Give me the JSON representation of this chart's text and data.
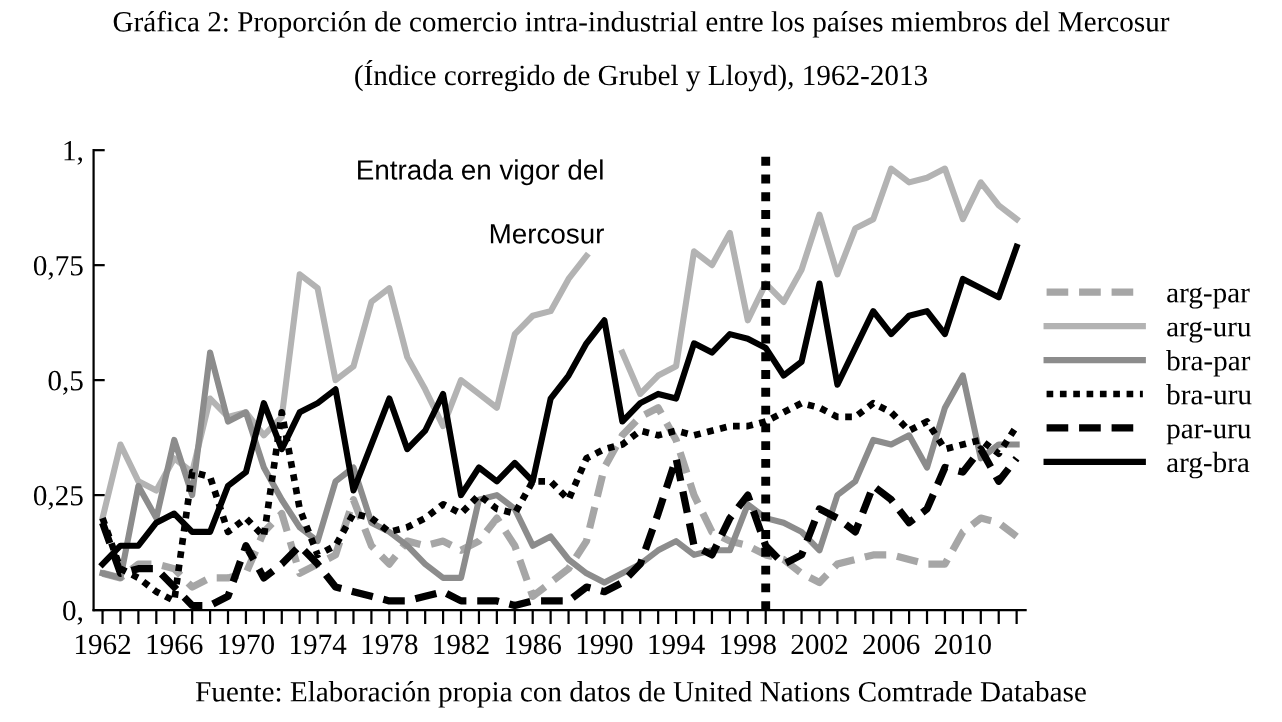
{
  "chart_data": {
    "type": "line",
    "title": "Gráfica 2: Proporción de comercio intra-industrial entre los países miembros del Mercosur\n(Índice corregido de Grubel y Lloyd), 1962-2013",
    "x": [
      1962,
      1963,
      1964,
      1965,
      1966,
      1967,
      1968,
      1969,
      1970,
      1971,
      1972,
      1973,
      1974,
      1975,
      1976,
      1977,
      1978,
      1979,
      1980,
      1981,
      1982,
      1983,
      1984,
      1985,
      1986,
      1987,
      1988,
      1989,
      1990,
      1991,
      1992,
      1993,
      1994,
      1995,
      1996,
      1997,
      1998,
      1999,
      2000,
      2001,
      2002,
      2003,
      2004,
      2005,
      2006,
      2007,
      2008,
      2009,
      2010,
      2011,
      2012,
      2013
    ],
    "series": [
      {
        "name": "arg-par",
        "color": "#a6a6a6",
        "line_style": "dashed",
        "values": [
          0.08,
          0.07,
          0.1,
          0.1,
          0.09,
          0.05,
          0.07,
          0.07,
          0.08,
          0.17,
          0.21,
          0.08,
          0.1,
          0.12,
          0.24,
          0.14,
          0.1,
          0.15,
          0.14,
          0.15,
          0.13,
          0.15,
          0.2,
          0.14,
          0.03,
          0.06,
          0.09,
          0.15,
          0.31,
          0.38,
          0.42,
          0.44,
          0.37,
          0.25,
          0.17,
          0.15,
          0.14,
          0.12,
          0.11,
          0.08,
          0.06,
          0.1,
          0.11,
          0.12,
          0.12,
          0.11,
          0.1,
          0.1,
          0.17,
          0.2,
          0.19,
          0.16
        ]
      },
      {
        "name": "arg-uru",
        "color": "#b3b3b3",
        "line_style": "solid",
        "values": [
          0.2,
          0.36,
          0.28,
          0.26,
          0.33,
          0.3,
          0.46,
          0.42,
          0.43,
          0.38,
          0.42,
          0.73,
          0.7,
          0.5,
          0.53,
          0.67,
          0.7,
          0.55,
          0.48,
          0.4,
          0.5,
          0.47,
          0.44,
          0.6,
          0.64,
          0.65,
          0.72,
          0.77,
          null,
          0.56,
          0.47,
          0.51,
          0.53,
          0.78,
          0.75,
          0.82,
          0.63,
          0.71,
          0.67,
          0.74,
          0.86,
          0.73,
          0.83,
          0.85,
          0.96,
          0.93,
          0.94,
          0.96,
          0.85,
          0.93,
          0.88,
          0.85
        ]
      },
      {
        "name": "bra-par",
        "color": "#8c8c8c",
        "line_style": "solid",
        "values": [
          0.08,
          0.07,
          0.27,
          0.2,
          0.37,
          0.25,
          0.56,
          0.41,
          0.43,
          0.31,
          0.24,
          0.18,
          0.15,
          0.28,
          0.31,
          0.19,
          0.17,
          0.14,
          0.1,
          0.07,
          0.07,
          0.24,
          0.25,
          0.22,
          0.14,
          0.16,
          0.11,
          0.08,
          0.06,
          0.08,
          0.1,
          0.13,
          0.15,
          0.12,
          0.13,
          0.13,
          0.23,
          0.2,
          0.19,
          0.17,
          0.13,
          0.25,
          0.28,
          0.37,
          0.36,
          0.38,
          0.31,
          0.44,
          0.51,
          0.33,
          0.36,
          0.36
        ]
      },
      {
        "name": "bra-uru",
        "color": "#000000",
        "line_style": "dotted",
        "values": [
          0.2,
          0.09,
          0.07,
          0.04,
          0.02,
          0.3,
          0.29,
          0.17,
          0.2,
          0.16,
          0.43,
          0.22,
          0.12,
          0.14,
          0.21,
          0.2,
          0.17,
          0.18,
          0.2,
          0.23,
          0.21,
          0.25,
          0.22,
          0.21,
          0.28,
          0.28,
          0.24,
          0.33,
          0.35,
          0.36,
          0.39,
          0.38,
          0.39,
          0.38,
          0.39,
          0.4,
          0.4,
          0.41,
          0.43,
          0.45,
          0.44,
          0.42,
          0.42,
          0.45,
          0.43,
          0.39,
          0.41,
          0.35,
          0.36,
          0.37,
          0.34,
          0.4
        ]
      },
      {
        "name": "par-uru",
        "color": "#000000",
        "line_style": "dashed",
        "values": [
          0.19,
          0.08,
          0.09,
          0.09,
          0.05,
          0.01,
          0.01,
          0.03,
          0.14,
          0.07,
          0.1,
          0.14,
          0.1,
          0.05,
          0.04,
          0.03,
          0.02,
          0.02,
          0.03,
          0.04,
          0.02,
          0.02,
          0.02,
          0.01,
          0.02,
          0.02,
          0.02,
          0.05,
          0.04,
          0.06,
          0.1,
          0.21,
          0.33,
          0.14,
          0.12,
          0.2,
          0.25,
          0.14,
          0.1,
          0.12,
          0.22,
          0.2,
          0.17,
          0.27,
          0.24,
          0.19,
          0.22,
          0.31,
          0.3,
          0.35,
          0.28,
          0.33
        ]
      },
      {
        "name": "arg-bra",
        "color": "#000000",
        "line_style": "solid",
        "values": [
          0.1,
          0.14,
          0.14,
          0.19,
          0.21,
          0.17,
          0.17,
          0.27,
          0.3,
          0.45,
          0.35,
          0.43,
          0.45,
          0.48,
          0.26,
          0.36,
          0.46,
          0.35,
          0.39,
          0.47,
          0.25,
          0.31,
          0.28,
          0.32,
          0.28,
          0.46,
          0.51,
          0.58,
          0.63,
          0.41,
          0.45,
          0.47,
          0.46,
          0.58,
          0.56,
          0.6,
          0.59,
          0.57,
          0.51,
          0.54,
          0.71,
          0.49,
          0.57,
          0.65,
          0.6,
          0.64,
          0.65,
          0.6,
          0.72,
          0.7,
          0.68,
          0.79
        ]
      }
    ],
    "xlim": [
      1961.5,
      2013.5
    ],
    "xticks": [
      1962,
      {
        "value": 1963,
        "label": null
      },
      {
        "value": 1964,
        "label": null
      },
      {
        "value": 1965,
        "label": null
      },
      1966,
      {
        "value": 1967,
        "label": null
      },
      {
        "value": 1968,
        "label": null
      },
      {
        "value": 1969,
        "label": null
      },
      1970,
      {
        "value": 1971,
        "label": null
      },
      {
        "value": 1972,
        "label": null
      },
      {
        "value": 1973,
        "label": null
      },
      1974,
      {
        "value": 1975,
        "label": null
      },
      {
        "value": 1976,
        "label": null
      },
      {
        "value": 1977,
        "label": null
      },
      1978,
      {
        "value": 1979,
        "label": null
      },
      {
        "value": 1980,
        "label": null
      },
      {
        "value": 1981,
        "label": null
      },
      1982,
      {
        "value": 1983,
        "label": null
      },
      {
        "value": 1984,
        "label": null
      },
      {
        "value": 1985,
        "label": null
      },
      1986,
      {
        "value": 1987,
        "label": null
      },
      {
        "value": 1988,
        "label": null
      },
      {
        "value": 1989,
        "label": null
      },
      1990,
      {
        "value": 1991,
        "label": null
      },
      {
        "value": 1992,
        "label": null
      },
      {
        "value": 1993,
        "label": null
      },
      1994,
      {
        "value": 1995,
        "label": null
      },
      {
        "value": 1996,
        "label": null
      },
      {
        "value": 1997,
        "label": null
      },
      1998,
      {
        "value": 1999,
        "label": null
      },
      {
        "value": 2000,
        "label": null
      },
      {
        "value": 2001,
        "label": null
      },
      2002,
      {
        "value": 2003,
        "label": null
      },
      {
        "value": 2004,
        "label": null
      },
      {
        "value": 2005,
        "label": null
      },
      2006,
      {
        "value": 2007,
        "label": null
      },
      {
        "value": 2008,
        "label": null
      },
      {
        "value": 2009,
        "label": null
      },
      2010,
      {
        "value": 2011,
        "label": null
      },
      {
        "value": 2012,
        "label": null
      },
      {
        "value": 2013,
        "label": null
      }
    ],
    "ylim": [
      0,
      1
    ],
    "yticks": [
      {
        "value": 0,
        "label": "0,"
      },
      {
        "value": 0.25,
        "label": "0,25"
      },
      {
        "value": 0.5,
        "label": "0,5"
      },
      {
        "value": 0.75,
        "label": "0,75"
      },
      {
        "value": 1,
        "label": "1,"
      }
    ],
    "ref_lines": [
      {
        "axis": "x",
        "value": 1999,
        "color": "#000000",
        "line_style": "dotted",
        "label": "Entrada en vigor del\n\nMercosur"
      }
    ],
    "annotations": [
      "Fuente: Elaboración propia con datos de United Nations Comtrade Database"
    ],
    "grid": false,
    "legend": "right"
  }
}
